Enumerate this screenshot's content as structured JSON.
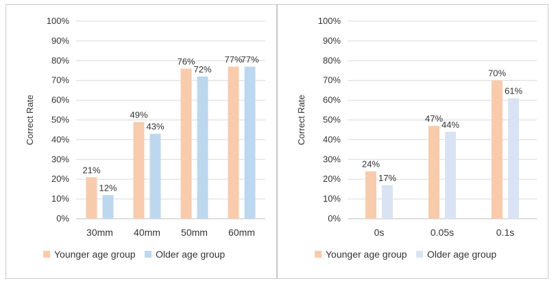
{
  "chart_data": [
    {
      "type": "bar",
      "categories": [
        "30mm",
        "40mm",
        "50mm",
        "60mm"
      ],
      "series": [
        {
          "name": "Younger age group",
          "values": [
            21,
            49,
            76,
            77
          ],
          "labels": [
            "21%",
            "49%",
            "76%",
            "77%"
          ],
          "color": "#f8cbad"
        },
        {
          "name": "Older age group",
          "values": [
            12,
            43,
            72,
            77
          ],
          "labels": [
            "12%",
            "43%",
            "72%",
            "77%"
          ],
          "color": "#bdd7ee"
        }
      ],
      "ylabel": "Correct Rate",
      "xlabel": "",
      "ylim": [
        0,
        100
      ],
      "yticks": [
        "0%",
        "10%",
        "20%",
        "30%",
        "40%",
        "50%",
        "60%",
        "70%",
        "80%",
        "90%",
        "100%"
      ],
      "grid": true,
      "legend": "bottom"
    },
    {
      "type": "bar",
      "categories": [
        "0s",
        "0.05s",
        "0.1s"
      ],
      "series": [
        {
          "name": "Younger age group",
          "values": [
            24,
            47,
            70
          ],
          "labels": [
            "24%",
            "47%",
            "70%"
          ],
          "color": "#f8cbad"
        },
        {
          "name": "Older age group",
          "values": [
            17,
            44,
            61
          ],
          "labels": [
            "17%",
            "44%",
            "61%"
          ],
          "color": "#dae3f3"
        }
      ],
      "ylabel": "Correct Rate",
      "xlabel": "",
      "ylim": [
        0,
        100
      ],
      "yticks": [
        "0%",
        "10%",
        "20%",
        "30%",
        "40%",
        "50%",
        "60%",
        "70%",
        "80%",
        "90%",
        "100%"
      ],
      "grid": true,
      "legend": "bottom"
    }
  ]
}
